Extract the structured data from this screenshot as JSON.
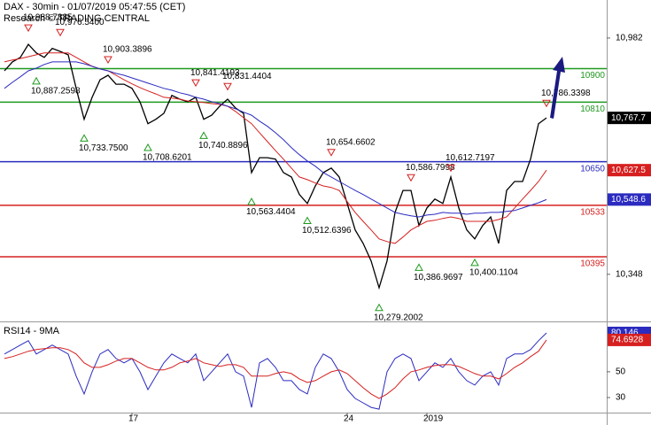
{
  "chart_data": [
    {
      "type": "line",
      "title": "DAX - 30min - 01/07/2019 05:47:55 (CET)",
      "subtitle": "Research © TRADING CENTRAL",
      "ylim": [
        10224,
        11084
      ],
      "yticks": [
        {
          "value": 10348,
          "label": "10,348"
        },
        {
          "value": 10982,
          "label": "10,982"
        }
      ],
      "series": [
        {
          "color": "#000000",
          "last_label": "10,767.7",
          "values": [
            10894,
            10918,
            10930,
            10965,
            10942,
            10930,
            10954,
            10946,
            10937,
            10847,
            10764,
            10823,
            10870,
            10882,
            10858,
            10858,
            10847,
            10811,
            10752,
            10764,
            10780,
            10828,
            10818,
            10811,
            10823,
            10764,
            10775,
            10799,
            10818,
            10794,
            10780,
            10621,
            10661,
            10661,
            10657,
            10621,
            10609,
            10562,
            10538,
            10585,
            10621,
            10633,
            10609,
            10538,
            10467,
            10431,
            10384,
            10312,
            10384,
            10514,
            10573,
            10573,
            10479,
            10526,
            10550,
            10538,
            10609,
            10526,
            10467,
            10443,
            10479,
            10502,
            10431,
            10573,
            10597,
            10597,
            10657,
            10752,
            10767.7
          ]
        },
        {
          "color": "#d62020",
          "last_label": "10,627.5",
          "values": [
            10918,
            10923,
            10927,
            10932,
            10937,
            10942,
            10942,
            10942,
            10942,
            10930,
            10918,
            10906,
            10899,
            10894,
            10882,
            10870,
            10859,
            10849,
            10840,
            10832,
            10823,
            10821,
            10818,
            10813,
            10811,
            10809,
            10806,
            10804,
            10799,
            10785,
            10768,
            10752,
            10728,
            10704,
            10680,
            10657,
            10633,
            10609,
            10602,
            10593,
            10585,
            10581,
            10573,
            10543,
            10514,
            10490,
            10467,
            10443,
            10436,
            10431,
            10448,
            10467,
            10479,
            10490,
            10493,
            10498,
            10502,
            10498,
            10490,
            10490,
            10490,
            10490,
            10495,
            10502,
            10526,
            10550,
            10573,
            10597,
            10627.5
          ]
        },
        {
          "color": "#2b2bc0",
          "last_label": "10,548.6",
          "values": [
            10847,
            10863,
            10878,
            10894,
            10901,
            10911,
            10918,
            10918,
            10918,
            10918,
            10913,
            10906,
            10899,
            10894,
            10887,
            10882,
            10875,
            10868,
            10861,
            10854,
            10847,
            10842,
            10835,
            10830,
            10823,
            10818,
            10811,
            10806,
            10799,
            10792,
            10783,
            10775,
            10759,
            10745,
            10728,
            10709,
            10688,
            10669,
            10652,
            10638,
            10621,
            10609,
            10597,
            10585,
            10573,
            10562,
            10550,
            10538,
            10526,
            10514,
            10509,
            10505,
            10502,
            10507,
            10509,
            10514,
            10512,
            10512,
            10509,
            10512,
            10512,
            10514,
            10514,
            10517,
            10519,
            10526,
            10533,
            10540,
            10548.6
          ]
        }
      ],
      "levels": [
        {
          "value": 10900,
          "color": "#1e9a1e"
        },
        {
          "value": 10810,
          "color": "#1e9a1e"
        },
        {
          "value": 10650,
          "color": "#2b2bc0"
        },
        {
          "value": 10533,
          "color": "#d62020"
        },
        {
          "value": 10395,
          "color": "#d62020"
        }
      ],
      "highs": [
        {
          "x": 3,
          "value": 10988.7885,
          "label": "10,988.7885"
        },
        {
          "x": 7,
          "value": 10976.54,
          "label": "10,976.5400"
        },
        {
          "x": 13,
          "value": 10903.3896,
          "label": "10,903.3896"
        },
        {
          "x": 24,
          "value": 10841.4193,
          "label": "10,841.4193"
        },
        {
          "x": 28,
          "value": 10831.4404,
          "label": "10,831.4404"
        },
        {
          "x": 41,
          "value": 10654.6602,
          "label": "10,654.6602"
        },
        {
          "x": 51,
          "value": 10586.7998,
          "label": "10,586.7998"
        },
        {
          "x": 56,
          "value": 10612.7197,
          "label": "10,612.7197"
        },
        {
          "x": 68,
          "value": 10786.3398,
          "label": "10,786.3398"
        }
      ],
      "lows": [
        {
          "x": 4,
          "value": 10887.2598,
          "label": "10,887.2598"
        },
        {
          "x": 10,
          "value": 10733.75,
          "label": "10,733.7500"
        },
        {
          "x": 18,
          "value": 10708.6201,
          "label": "10,708.6201"
        },
        {
          "x": 25,
          "value": 10740.8896,
          "label": "10,740.8896"
        },
        {
          "x": 31,
          "value": 10563.4404,
          "label": "10,563.4404"
        },
        {
          "x": 38,
          "value": 10512.6396,
          "label": "10,512.6396"
        },
        {
          "x": 47,
          "value": 10279.2002,
          "label": "10,279.2002"
        },
        {
          "x": 52,
          "value": 10386.9697,
          "label": "10,386.9697"
        },
        {
          "x": 59,
          "value": 10400.1104,
          "label": "10,400.1104"
        }
      ]
    },
    {
      "type": "line",
      "title": "RSI14 - 9MA",
      "categories": [
        null,
        null,
        null,
        null,
        null,
        null,
        null,
        null,
        null,
        null,
        null,
        null,
        null,
        null,
        null,
        null,
        "17",
        null,
        null,
        null,
        null,
        null,
        null,
        null,
        null,
        null,
        null,
        null,
        null,
        null,
        null,
        null,
        null,
        null,
        null,
        null,
        null,
        null,
        null,
        null,
        null,
        null,
        null,
        "24",
        null,
        null,
        null,
        null,
        null,
        null,
        null,
        null,
        null,
        "2019",
        null,
        null,
        null,
        null,
        null,
        null,
        null,
        null,
        null,
        null,
        null,
        null,
        null,
        null,
        null
      ],
      "ylim": [
        19,
        87
      ],
      "yticks": [
        30,
        50
      ],
      "series": [
        {
          "color": "#2b2bc0",
          "last_label": "80.146",
          "values": [
            63.8,
            67.2,
            70.7,
            74.1,
            63.8,
            67.2,
            70.7,
            67.2,
            63.8,
            46.6,
            32.8,
            50,
            63.8,
            67.2,
            60.3,
            56.9,
            60.3,
            50,
            36.2,
            46.6,
            56.9,
            63.8,
            60.3,
            56.9,
            63.8,
            43.1,
            50,
            56.9,
            63.8,
            50,
            46.6,
            22.4,
            56.9,
            60.3,
            53.4,
            43.1,
            43.1,
            36.2,
            32.8,
            53.4,
            63.8,
            60.3,
            50,
            36.2,
            29.3,
            25.9,
            22.4,
            21,
            50,
            60.3,
            63.8,
            60.3,
            43.1,
            50,
            56.9,
            53.4,
            60.3,
            50,
            43.1,
            39.7,
            46.6,
            50,
            39.7,
            60.3,
            63.8,
            63.8,
            67.2,
            74.1,
            80.146
          ]
        },
        {
          "color": "#d62020",
          "last_label": "74.6928",
          "values": [
            60.3,
            61.7,
            63.8,
            65.9,
            67.2,
            67.9,
            68.6,
            68.6,
            67.2,
            63.8,
            56.9,
            53.4,
            53.4,
            55.5,
            58.3,
            60.3,
            60.3,
            56.9,
            53.4,
            51.4,
            51.4,
            53.4,
            56.9,
            58.3,
            60.3,
            56.9,
            55.5,
            54.1,
            55.5,
            55.5,
            53.4,
            46.6,
            46.6,
            46.6,
            48.6,
            50,
            48.6,
            44.5,
            41.7,
            43.1,
            46.6,
            50,
            51.4,
            48.6,
            43.1,
            37.6,
            32.8,
            29.3,
            32.8,
            37.6,
            44.5,
            50,
            51.4,
            53.4,
            54.8,
            55.5,
            55.5,
            54.1,
            51.4,
            48.6,
            46.6,
            46.6,
            44.5,
            48.6,
            53.4,
            56.9,
            61.7,
            65.9,
            74.6928
          ]
        }
      ]
    }
  ]
}
